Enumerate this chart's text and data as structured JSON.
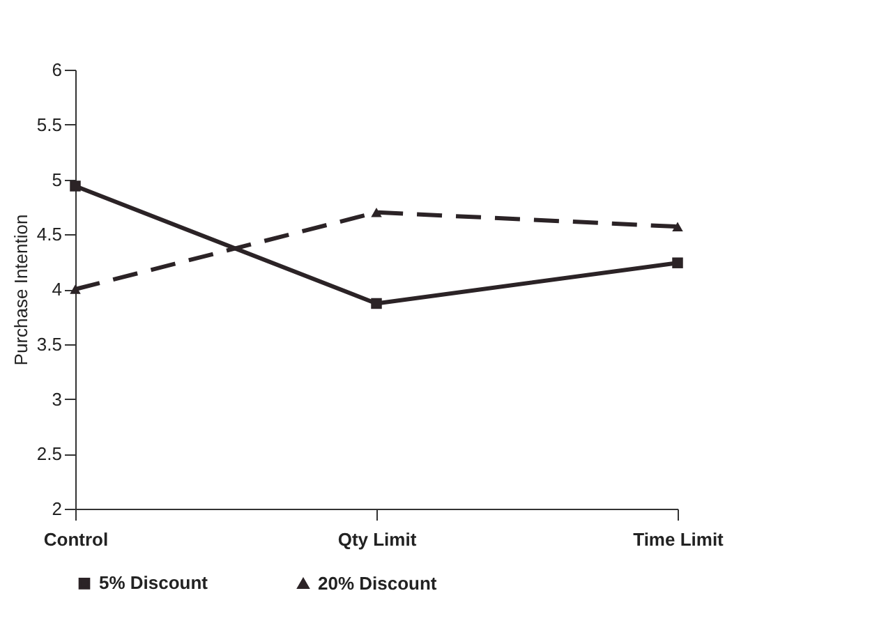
{
  "chart_data": {
    "type": "line",
    "ylabel": "Purchase Intention",
    "categories": [
      "Control",
      "Qty Limit",
      "Time Limit"
    ],
    "series": [
      {
        "name": "5% Discount",
        "color": "#2b2326",
        "values": [
          4.94,
          3.87,
          4.24
        ],
        "marker": "square",
        "line_style": "solid"
      },
      {
        "name": "20% Discount",
        "color": "#2b2326",
        "values": [
          4.0,
          4.7,
          4.57
        ],
        "marker": "triangle",
        "line_style": "dashed"
      }
    ],
    "ylim": [
      2,
      6
    ],
    "yticks": [
      2,
      2.5,
      3,
      3.5,
      4,
      4.5,
      5,
      5.5,
      6
    ],
    "grid": false,
    "legend": "bottom"
  }
}
